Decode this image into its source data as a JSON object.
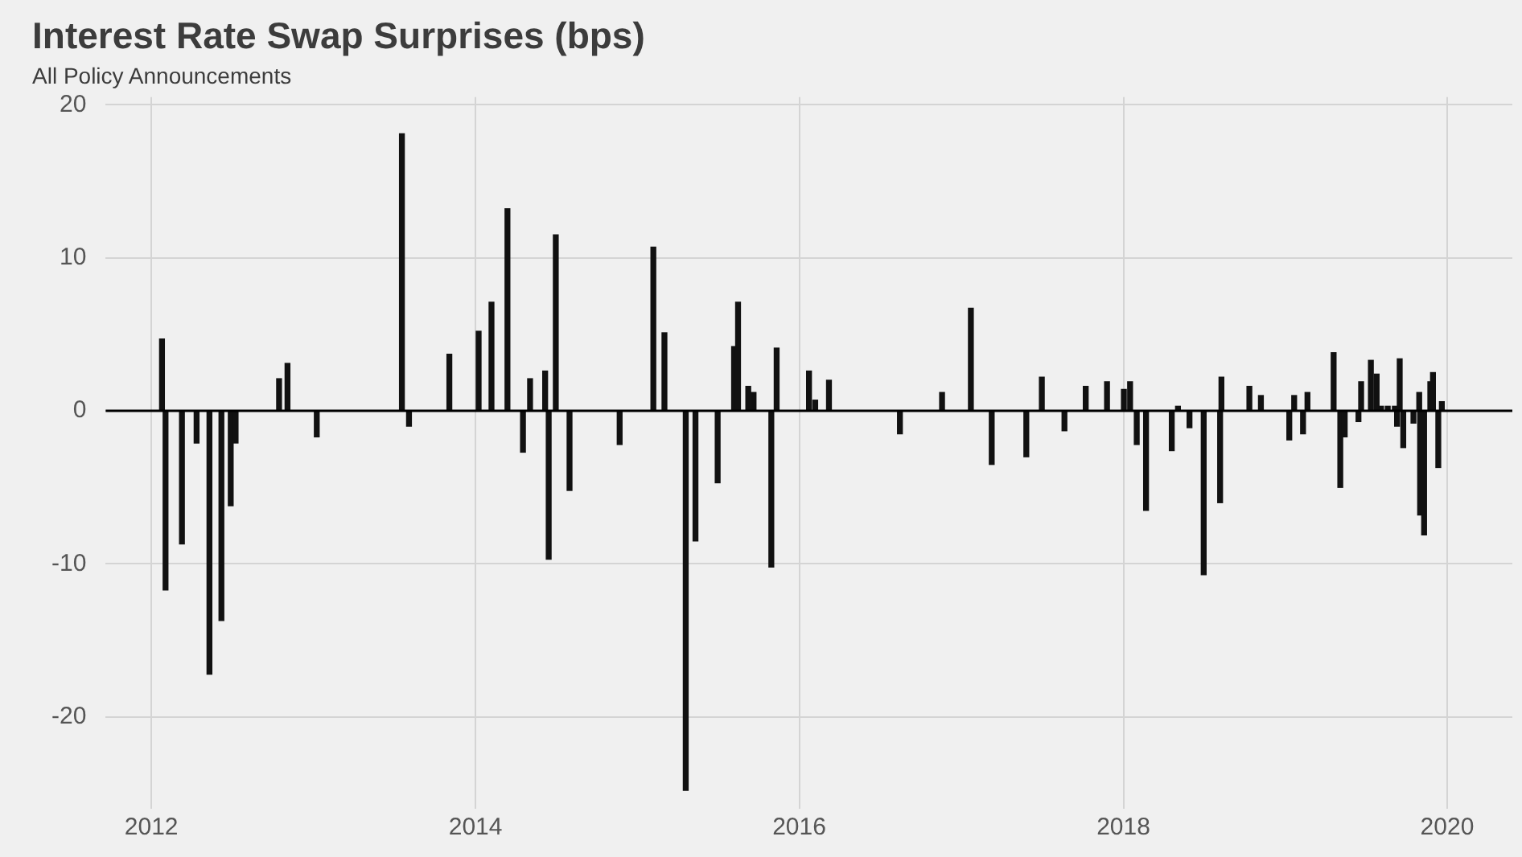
{
  "chart_data": {
    "type": "bar",
    "title": "Interest Rate Swap Surprises (bps)",
    "subtitle": "All Policy Announcements",
    "x": [
      "2012-01-25",
      "2012-02-02",
      "2012-03-10",
      "2012-04-12",
      "2012-05-11",
      "2012-06-07",
      "2012-06-28",
      "2012-07-09",
      "2012-10-15",
      "2012-11-03",
      "2013-01-08",
      "2013-07-19",
      "2013-08-04",
      "2013-11-03",
      "2014-01-08",
      "2014-02-06",
      "2014-03-14",
      "2014-04-18",
      "2014-05-04",
      "2014-06-07",
      "2014-06-15",
      "2014-07-01",
      "2014-08-01",
      "2014-11-22",
      "2015-02-06",
      "2015-03-03",
      "2015-04-20",
      "2015-05-12",
      "2015-07-01",
      "2015-08-07",
      "2015-08-16",
      "2015-09-08",
      "2015-09-20",
      "2015-10-30",
      "2015-11-11",
      "2016-01-23",
      "2016-02-06",
      "2016-03-08",
      "2016-08-15",
      "2016-11-18",
      "2017-01-22",
      "2017-03-10",
      "2017-05-27",
      "2017-07-01",
      "2017-08-21",
      "2017-10-08",
      "2017-11-25",
      "2018-01-02",
      "2018-01-16",
      "2018-01-31",
      "2018-02-21",
      "2018-04-20",
      "2018-05-04",
      "2018-05-30",
      "2018-07-01",
      "2018-08-07",
      "2018-08-10",
      "2018-10-12",
      "2018-11-07",
      "2019-01-10",
      "2019-01-21",
      "2019-02-10",
      "2019-02-20",
      "2019-04-20",
      "2019-05-05",
      "2019-05-15",
      "2019-06-15",
      "2019-06-21",
      "2019-07-13",
      "2019-07-26",
      "2019-08-05",
      "2019-08-20",
      "2019-09-05",
      "2019-09-10",
      "2019-09-16",
      "2019-09-24",
      "2019-10-17",
      "2019-10-30",
      "2019-11-01",
      "2019-11-10",
      "2019-11-24",
      "2019-11-30",
      "2019-12-12",
      "2019-12-20"
    ],
    "values": [
      4.7,
      -11.7,
      -8.7,
      -2.1,
      -17.2,
      -13.7,
      -6.2,
      -2.1,
      2.1,
      3.1,
      -1.7,
      18.1,
      -1.0,
      3.7,
      5.2,
      7.1,
      13.2,
      -2.7,
      2.1,
      2.6,
      -9.7,
      11.5,
      -5.2,
      -2.2,
      10.7,
      5.1,
      -24.8,
      -8.5,
      -4.7,
      4.2,
      7.1,
      1.6,
      1.2,
      -10.2,
      4.1,
      2.6,
      0.7,
      2.0,
      -1.5,
      1.2,
      6.7,
      -3.5,
      -3.0,
      2.2,
      -1.3,
      1.6,
      1.9,
      1.4,
      1.9,
      -2.2,
      -6.5,
      -2.6,
      0.3,
      -1.1,
      -10.7,
      -6.0,
      2.2,
      1.6,
      1.0,
      -1.9,
      1.0,
      -1.5,
      1.2,
      3.8,
      -5.0,
      -1.7,
      -0.7,
      1.9,
      3.3,
      2.4,
      0.3,
      0.3,
      0.3,
      -1.0,
      3.4,
      -2.4,
      -0.8,
      1.2,
      -6.8,
      -8.1,
      1.9,
      2.5,
      -3.7,
      0.6
    ],
    "color": "#111111",
    "xlim": [
      "2011-09-20",
      "2020-05-27"
    ],
    "xticks": [
      {
        "value": "2012-01-01",
        "label": "2012"
      },
      {
        "value": "2014-01-01",
        "label": "2014"
      },
      {
        "value": "2016-01-01",
        "label": "2016"
      },
      {
        "value": "2018-01-01",
        "label": "2018"
      },
      {
        "value": "2020-01-01",
        "label": "2020"
      }
    ],
    "ylim": [
      -26,
      20.5
    ],
    "yticks": [
      -20,
      -10,
      0,
      10,
      20
    ],
    "ref_lines": [
      {
        "axis": "y",
        "value": 0,
        "color": "#000000"
      }
    ],
    "grid": true
  }
}
